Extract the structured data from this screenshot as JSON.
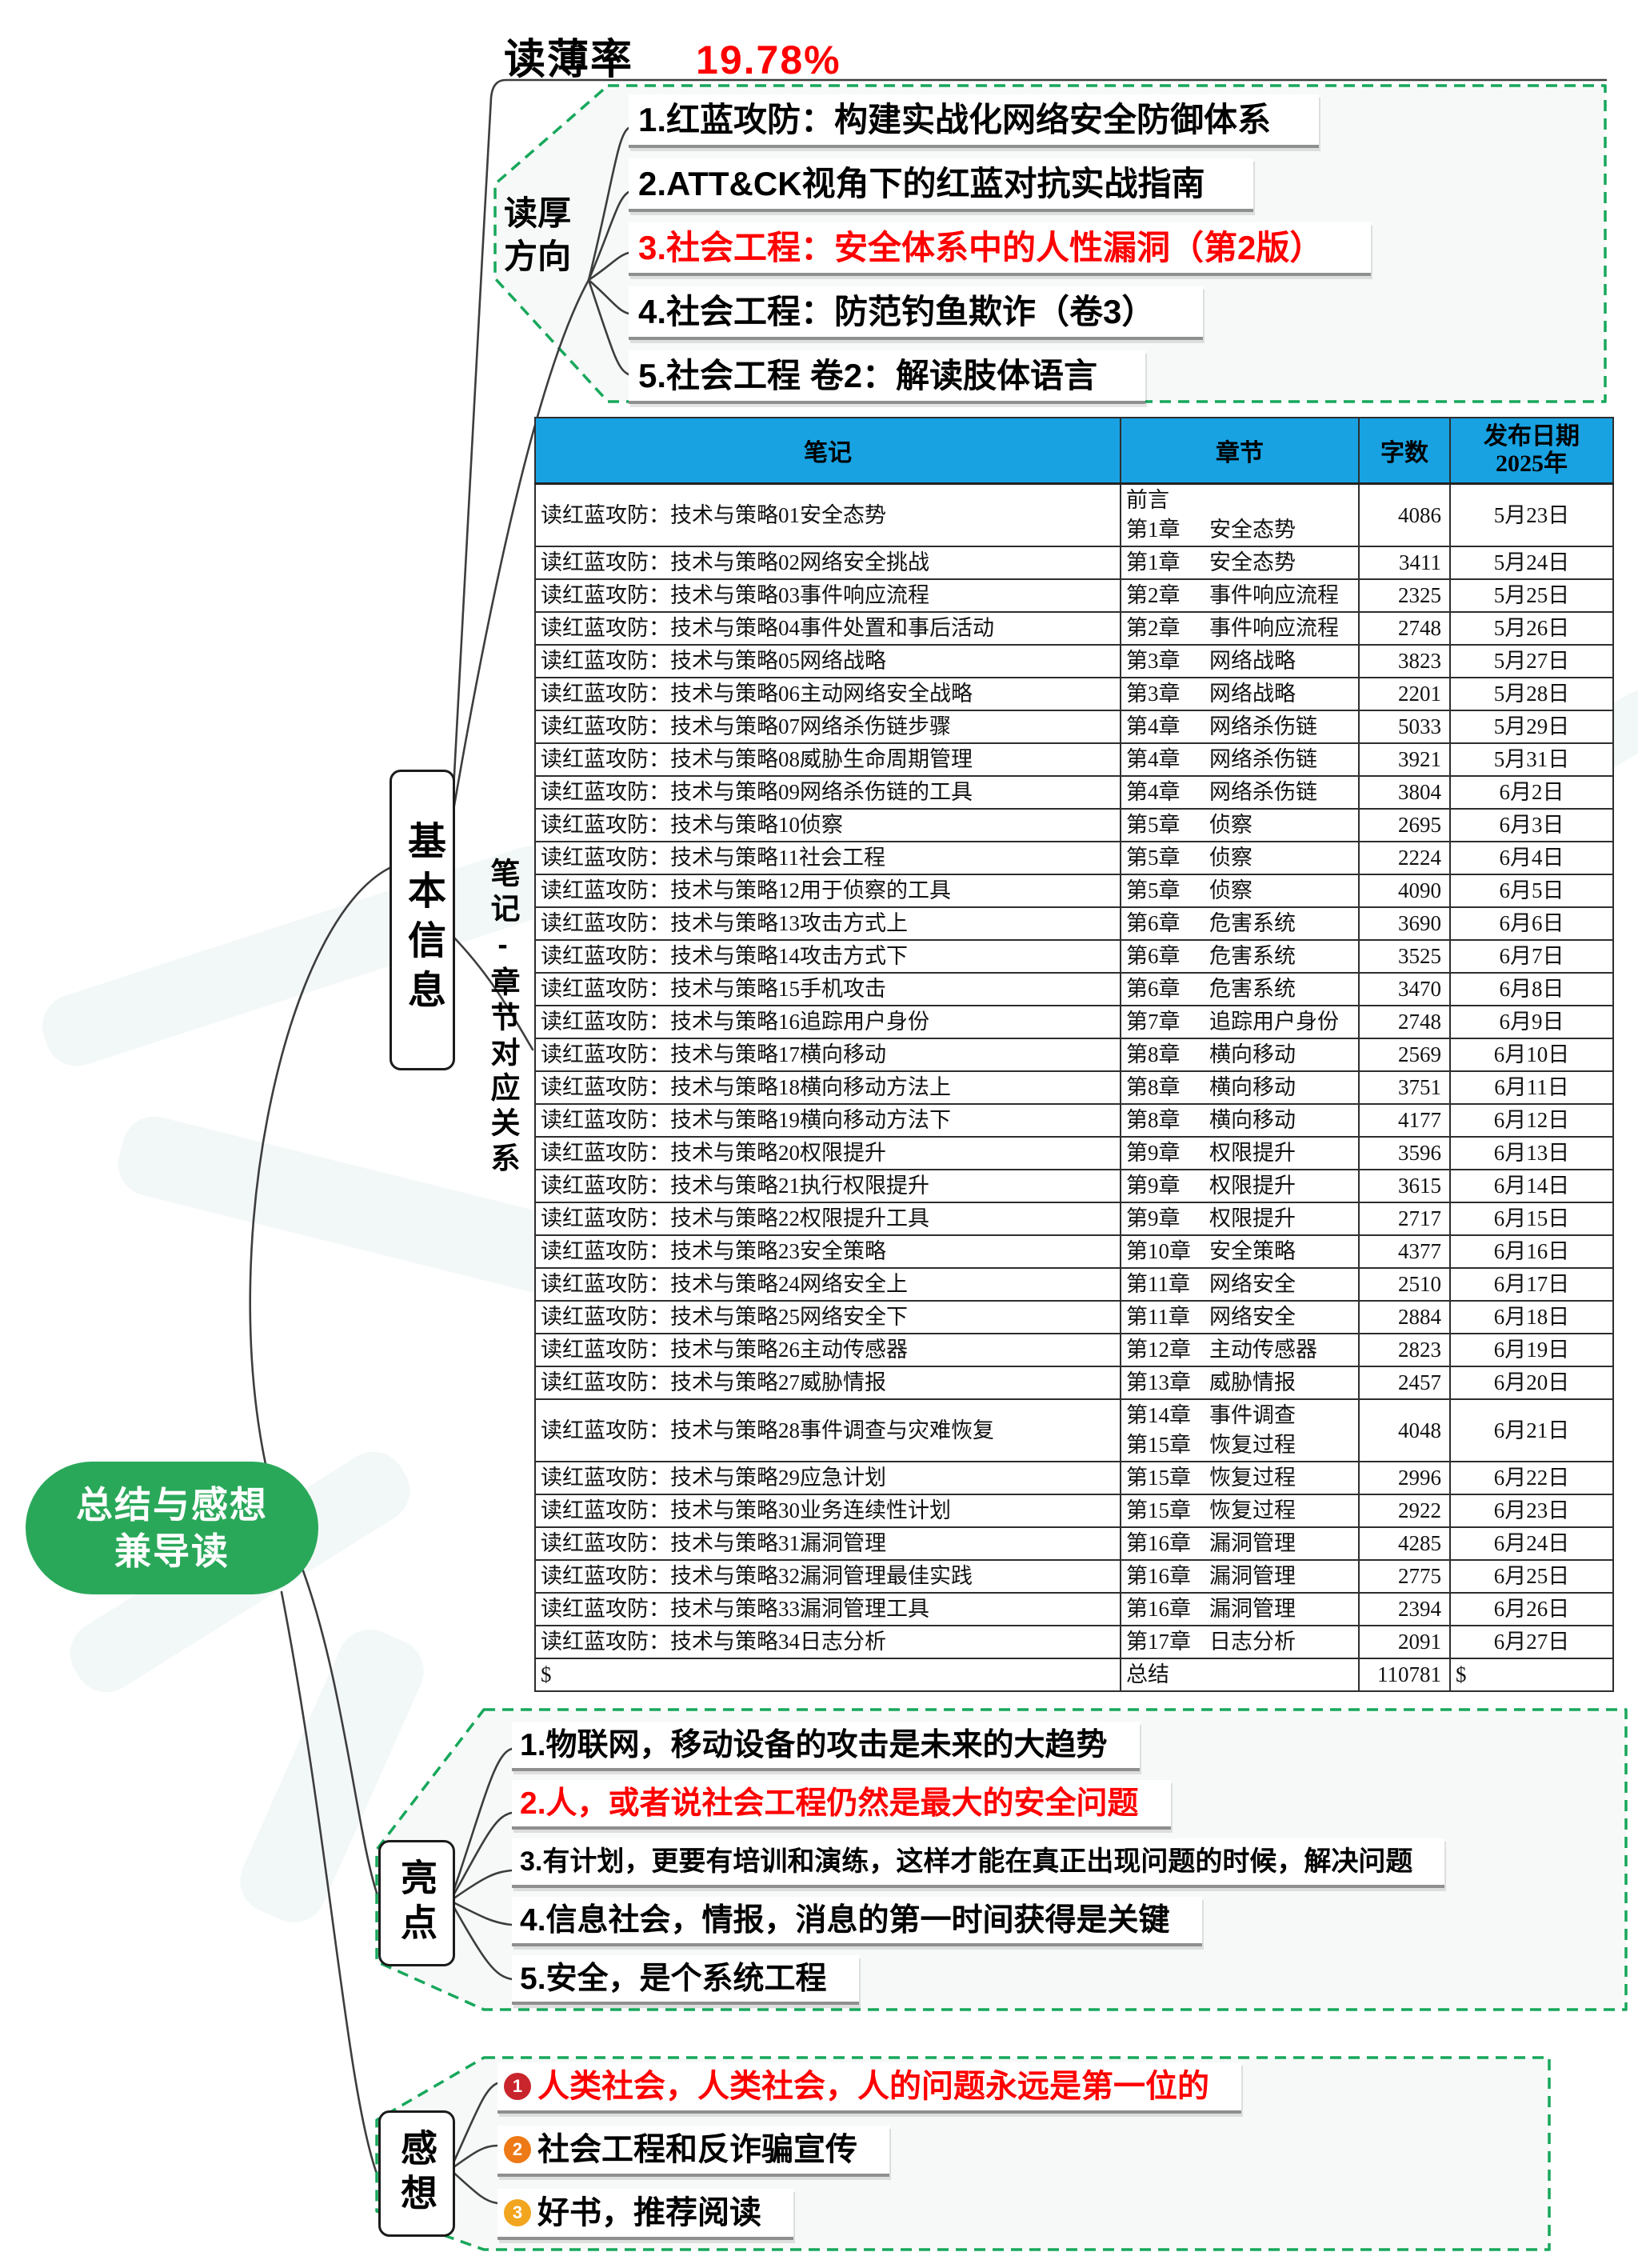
{
  "read_rate": {
    "label": "读薄率",
    "value": "19.78%"
  },
  "read_thick": {
    "label": "读厚方向",
    "items": [
      {
        "text": "1.红蓝攻防：构建实战化网络安全防御体系",
        "red": false
      },
      {
        "text": "2.ATT&CK视角下的红蓝对抗实战指南",
        "red": false
      },
      {
        "text": "3.社会工程：安全体系中的人性漏洞（第2版）",
        "red": true
      },
      {
        "text": "4.社会工程：防范钓鱼欺诈（卷3）",
        "red": false
      },
      {
        "text": "5.社会工程 卷2：解读肢体语言",
        "red": false
      }
    ]
  },
  "branches": {
    "basic_info": "基本信息",
    "notes_map": "笔记-章节对应关系",
    "highlights": "亮点",
    "thoughts": "感想"
  },
  "root": {
    "line1": "总结与感想",
    "line2": "兼导读"
  },
  "table": {
    "headers": {
      "note": "笔记",
      "chapter": "章节",
      "words": "字数",
      "date_line1": "发布日期",
      "date_line2": "2025年"
    },
    "rows": [
      {
        "note": "读红蓝攻防：技术与策略01安全态势",
        "chapter": [
          [
            "前言",
            ""
          ],
          [
            "第1章",
            "安全态势"
          ]
        ],
        "words": "4086",
        "date": "5月23日"
      },
      {
        "note": "读红蓝攻防：技术与策略02网络安全挑战",
        "chapter": [
          [
            "第1章",
            "安全态势"
          ]
        ],
        "words": "3411",
        "date": "5月24日"
      },
      {
        "note": "读红蓝攻防：技术与策略03事件响应流程",
        "chapter": [
          [
            "第2章",
            "事件响应流程"
          ]
        ],
        "words": "2325",
        "date": "5月25日"
      },
      {
        "note": "读红蓝攻防：技术与策略04事件处置和事后活动",
        "chapter": [
          [
            "第2章",
            "事件响应流程"
          ]
        ],
        "words": "2748",
        "date": "5月26日"
      },
      {
        "note": "读红蓝攻防：技术与策略05网络战略",
        "chapter": [
          [
            "第3章",
            "网络战略"
          ]
        ],
        "words": "3823",
        "date": "5月27日"
      },
      {
        "note": "读红蓝攻防：技术与策略06主动网络安全战略",
        "chapter": [
          [
            "第3章",
            "网络战略"
          ]
        ],
        "words": "2201",
        "date": "5月28日"
      },
      {
        "note": "读红蓝攻防：技术与策略07网络杀伤链步骤",
        "chapter": [
          [
            "第4章",
            "网络杀伤链"
          ]
        ],
        "words": "5033",
        "date": "5月29日"
      },
      {
        "note": "读红蓝攻防：技术与策略08威胁生命周期管理",
        "chapter": [
          [
            "第4章",
            "网络杀伤链"
          ]
        ],
        "words": "3921",
        "date": "5月31日"
      },
      {
        "note": "读红蓝攻防：技术与策略09网络杀伤链的工具",
        "chapter": [
          [
            "第4章",
            "网络杀伤链"
          ]
        ],
        "words": "3804",
        "date": "6月2日"
      },
      {
        "note": "读红蓝攻防：技术与策略10侦察",
        "chapter": [
          [
            "第5章",
            "侦察"
          ]
        ],
        "words": "2695",
        "date": "6月3日"
      },
      {
        "note": "读红蓝攻防：技术与策略11社会工程",
        "chapter": [
          [
            "第5章",
            "侦察"
          ]
        ],
        "words": "2224",
        "date": "6月4日"
      },
      {
        "note": "读红蓝攻防：技术与策略12用于侦察的工具",
        "chapter": [
          [
            "第5章",
            "侦察"
          ]
        ],
        "words": "4090",
        "date": "6月5日"
      },
      {
        "note": "读红蓝攻防：技术与策略13攻击方式上",
        "chapter": [
          [
            "第6章",
            "危害系统"
          ]
        ],
        "words": "3690",
        "date": "6月6日"
      },
      {
        "note": "读红蓝攻防：技术与策略14攻击方式下",
        "chapter": [
          [
            "第6章",
            "危害系统"
          ]
        ],
        "words": "3525",
        "date": "6月7日"
      },
      {
        "note": "读红蓝攻防：技术与策略15手机攻击",
        "chapter": [
          [
            "第6章",
            "危害系统"
          ]
        ],
        "words": "3470",
        "date": "6月8日"
      },
      {
        "note": "读红蓝攻防：技术与策略16追踪用户身份",
        "chapter": [
          [
            "第7章",
            "追踪用户身份"
          ]
        ],
        "words": "2748",
        "date": "6月9日"
      },
      {
        "note": "读红蓝攻防：技术与策略17横向移动",
        "chapter": [
          [
            "第8章",
            "横向移动"
          ]
        ],
        "words": "2569",
        "date": "6月10日"
      },
      {
        "note": "读红蓝攻防：技术与策略18横向移动方法上",
        "chapter": [
          [
            "第8章",
            "横向移动"
          ]
        ],
        "words": "3751",
        "date": "6月11日"
      },
      {
        "note": "读红蓝攻防：技术与策略19横向移动方法下",
        "chapter": [
          [
            "第8章",
            "横向移动"
          ]
        ],
        "words": "4177",
        "date": "6月12日"
      },
      {
        "note": "读红蓝攻防：技术与策略20权限提升",
        "chapter": [
          [
            "第9章",
            "权限提升"
          ]
        ],
        "words": "3596",
        "date": "6月13日"
      },
      {
        "note": "读红蓝攻防：技术与策略21执行权限提升",
        "chapter": [
          [
            "第9章",
            "权限提升"
          ]
        ],
        "words": "3615",
        "date": "6月14日"
      },
      {
        "note": "读红蓝攻防：技术与策略22权限提升工具",
        "chapter": [
          [
            "第9章",
            "权限提升"
          ]
        ],
        "words": "2717",
        "date": "6月15日"
      },
      {
        "note": "读红蓝攻防：技术与策略23安全策略",
        "chapter": [
          [
            "第10章",
            "安全策略"
          ]
        ],
        "words": "4377",
        "date": "6月16日"
      },
      {
        "note": "读红蓝攻防：技术与策略24网络安全上",
        "chapter": [
          [
            "第11章",
            "网络安全"
          ]
        ],
        "words": "2510",
        "date": "6月17日"
      },
      {
        "note": "读红蓝攻防：技术与策略25网络安全下",
        "chapter": [
          [
            "第11章",
            "网络安全"
          ]
        ],
        "words": "2884",
        "date": "6月18日"
      },
      {
        "note": "读红蓝攻防：技术与策略26主动传感器",
        "chapter": [
          [
            "第12章",
            "主动传感器"
          ]
        ],
        "words": "2823",
        "date": "6月19日"
      },
      {
        "note": "读红蓝攻防：技术与策略27威胁情报",
        "chapter": [
          [
            "第13章",
            "威胁情报"
          ]
        ],
        "words": "2457",
        "date": "6月20日"
      },
      {
        "note": "读红蓝攻防：技术与策略28事件调查与灾难恢复",
        "chapter": [
          [
            "第14章",
            "事件调查"
          ],
          [
            "第15章",
            "恢复过程"
          ]
        ],
        "words": "4048",
        "date": "6月21日"
      },
      {
        "note": "读红蓝攻防：技术与策略29应急计划",
        "chapter": [
          [
            "第15章",
            "恢复过程"
          ]
        ],
        "words": "2996",
        "date": "6月22日"
      },
      {
        "note": "读红蓝攻防：技术与策略30业务连续性计划",
        "chapter": [
          [
            "第15章",
            "恢复过程"
          ]
        ],
        "words": "2922",
        "date": "6月23日"
      },
      {
        "note": "读红蓝攻防：技术与策略31漏洞管理",
        "chapter": [
          [
            "第16章",
            "漏洞管理"
          ]
        ],
        "words": "4285",
        "date": "6月24日"
      },
      {
        "note": "读红蓝攻防：技术与策略32漏洞管理最佳实践",
        "chapter": [
          [
            "第16章",
            "漏洞管理"
          ]
        ],
        "words": "2775",
        "date": "6月25日"
      },
      {
        "note": "读红蓝攻防：技术与策略33漏洞管理工具",
        "chapter": [
          [
            "第16章",
            "漏洞管理"
          ]
        ],
        "words": "2394",
        "date": "6月26日"
      },
      {
        "note": "读红蓝攻防：技术与策略34日志分析",
        "chapter": [
          [
            "第17章",
            "日志分析"
          ]
        ],
        "words": "2091",
        "date": "6月27日"
      },
      {
        "note": "$",
        "chapter": [
          [
            "总结",
            ""
          ]
        ],
        "words": "110781",
        "date": "$"
      }
    ]
  },
  "highlights": {
    "items": [
      {
        "text": "1.物联网，移动设备的攻击是未来的大趋势",
        "red": false
      },
      {
        "text": "2.人，或者说社会工程仍然是最大的安全问题",
        "red": true
      },
      {
        "text": "3.有计划，更要有培训和演练，这样才能在真正出现问题的时候，解决问题",
        "red": false
      },
      {
        "text": "4.信息社会，情报，消息的第一时间获得是关键",
        "red": false
      },
      {
        "text": "5.安全，是个系统工程",
        "red": false
      }
    ]
  },
  "thoughts": {
    "items": [
      {
        "num": "1",
        "text": "人类社会，人类社会，人的问题永远是第一位的",
        "red": true,
        "bullet_color": "#c9252c"
      },
      {
        "num": "2",
        "text": "社会工程和反诈骗宣传",
        "red": false,
        "bullet_color": "#ed7a17"
      },
      {
        "num": "3",
        "text": "好书，推荐阅读",
        "red": false,
        "bullet_color": "#f2a51e"
      }
    ]
  },
  "colors": {
    "accent_green": "#17a75b",
    "node_green": "#2aa85a",
    "header_blue": "#18a2e2",
    "red": "#ff0000"
  }
}
